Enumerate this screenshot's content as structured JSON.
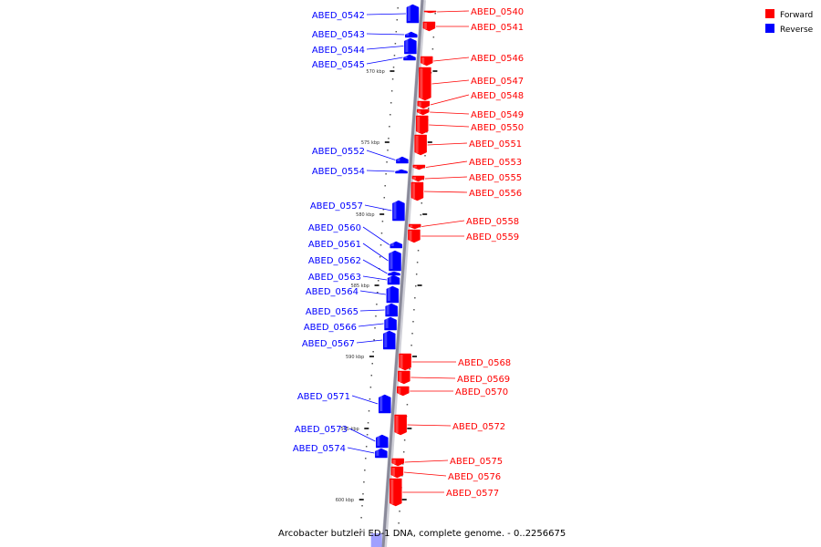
{
  "legend": {
    "forward_label": "Forward",
    "reverse_label": "Reverse",
    "forward_color": "#ff0000",
    "reverse_color": "#0000ff"
  },
  "caption": "Arcobacter butzleri ED-1 DNA, complete genome. - 0..2256675",
  "ticks": [
    "570 kbp",
    "575 kbp",
    "580 kbp",
    "585 kbp",
    "590 kbp",
    "595 kbp",
    "600 kbp"
  ],
  "genes": [
    {
      "name": "ABED_0540",
      "strand": "forward"
    },
    {
      "name": "ABED_0541",
      "strand": "forward"
    },
    {
      "name": "ABED_0542",
      "strand": "reverse"
    },
    {
      "name": "ABED_0543",
      "strand": "reverse"
    },
    {
      "name": "ABED_0544",
      "strand": "reverse"
    },
    {
      "name": "ABED_0545",
      "strand": "reverse"
    },
    {
      "name": "ABED_0546",
      "strand": "forward"
    },
    {
      "name": "ABED_0547",
      "strand": "forward"
    },
    {
      "name": "ABED_0548",
      "strand": "forward"
    },
    {
      "name": "ABED_0549",
      "strand": "forward"
    },
    {
      "name": "ABED_0550",
      "strand": "forward"
    },
    {
      "name": "ABED_0551",
      "strand": "forward"
    },
    {
      "name": "ABED_0552",
      "strand": "reverse"
    },
    {
      "name": "ABED_0553",
      "strand": "forward"
    },
    {
      "name": "ABED_0554",
      "strand": "reverse"
    },
    {
      "name": "ABED_0555",
      "strand": "forward"
    },
    {
      "name": "ABED_0556",
      "strand": "forward"
    },
    {
      "name": "ABED_0557",
      "strand": "reverse"
    },
    {
      "name": "ABED_0558",
      "strand": "forward"
    },
    {
      "name": "ABED_0559",
      "strand": "forward"
    },
    {
      "name": "ABED_0560",
      "strand": "reverse"
    },
    {
      "name": "ABED_0561",
      "strand": "reverse"
    },
    {
      "name": "ABED_0562",
      "strand": "reverse"
    },
    {
      "name": "ABED_0563",
      "strand": "reverse"
    },
    {
      "name": "ABED_0564",
      "strand": "reverse"
    },
    {
      "name": "ABED_0565",
      "strand": "reverse"
    },
    {
      "name": "ABED_0566",
      "strand": "reverse"
    },
    {
      "name": "ABED_0567",
      "strand": "reverse"
    },
    {
      "name": "ABED_0568",
      "strand": "forward"
    },
    {
      "name": "ABED_0569",
      "strand": "forward"
    },
    {
      "name": "ABED_0570",
      "strand": "forward"
    },
    {
      "name": "ABED_0571",
      "strand": "reverse"
    },
    {
      "name": "ABED_0572",
      "strand": "forward"
    },
    {
      "name": "ABED_0573",
      "strand": "reverse"
    },
    {
      "name": "ABED_0574",
      "strand": "reverse"
    },
    {
      "name": "ABED_0575",
      "strand": "forward"
    },
    {
      "name": "ABED_0576",
      "strand": "forward"
    },
    {
      "name": "ABED_0577",
      "strand": "forward"
    }
  ]
}
